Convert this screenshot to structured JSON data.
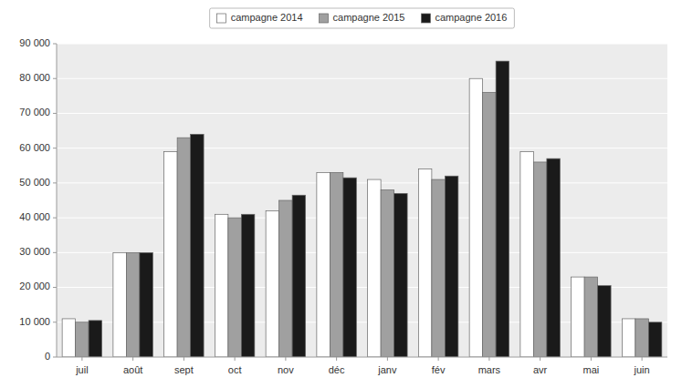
{
  "chart_data": {
    "type": "bar",
    "categories": [
      "juil",
      "août",
      "sept",
      "oct",
      "nov",
      "déc",
      "janv",
      "fév",
      "mars",
      "avr",
      "mai",
      "juin"
    ],
    "series": [
      {
        "name": "campagne 2014",
        "color": "#ffffff",
        "values": [
          11000,
          30000,
          59000,
          41000,
          42000,
          53000,
          51000,
          54000,
          80000,
          59000,
          23000,
          11000
        ]
      },
      {
        "name": "campagne 2015",
        "color": "#a0a0a0",
        "values": [
          10000,
          30000,
          63000,
          40000,
          45000,
          53000,
          48000,
          51000,
          76000,
          56000,
          23000,
          11000
        ]
      },
      {
        "name": "campagne 2016",
        "color": "#1a1a1a",
        "values": [
          10500,
          30000,
          64000,
          41000,
          46500,
          51500,
          47000,
          52000,
          85000,
          57000,
          20500,
          10000
        ]
      }
    ],
    "ylim": [
      0,
      90000
    ],
    "yticks": [
      0,
      {
        "value": 10000,
        "label": "10 000"
      },
      {
        "value": 20000,
        "label": "20 000"
      },
      {
        "value": 30000,
        "label": "30 000"
      },
      {
        "value": 40000,
        "label": "40 000"
      },
      {
        "value": 50000,
        "label": "50 000"
      },
      {
        "value": 60000,
        "label": "60 000"
      },
      {
        "value": 70000,
        "label": "70 000"
      },
      {
        "value": 80000,
        "label": "80 000"
      },
      {
        "value": 90000,
        "label": "90 000"
      }
    ],
    "grid": true,
    "legend": "top"
  }
}
